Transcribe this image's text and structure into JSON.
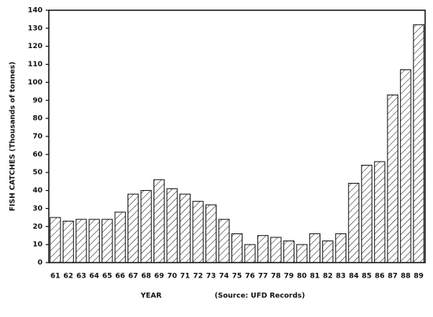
{
  "chart_data": {
    "type": "bar",
    "y_label": "FISH CATCHES (Thousands of tonnes)",
    "x_label": "YEAR",
    "annotation": "(Source: UFD Records)",
    "categories": [
      "61",
      "62",
      "63",
      "64",
      "65",
      "66",
      "67",
      "68",
      "69",
      "70",
      "71",
      "72",
      "73",
      "74",
      "75",
      "76",
      "77",
      "78",
      "79",
      "80",
      "81",
      "82",
      "83",
      "84",
      "85",
      "86",
      "87",
      "88",
      "89"
    ],
    "values": [
      25,
      23,
      24,
      24,
      24,
      28,
      38,
      40,
      46,
      41,
      38,
      34,
      32,
      24,
      16,
      10,
      15,
      14,
      12,
      10,
      16,
      12,
      16,
      44,
      54,
      56,
      93,
      107,
      132
    ],
    "color": "#111111",
    "ylim": [
      0,
      140
    ],
    "yticks": [
      0,
      10,
      20,
      30,
      40,
      50,
      60,
      70,
      80,
      90,
      100,
      110,
      120,
      130,
      140
    ]
  }
}
